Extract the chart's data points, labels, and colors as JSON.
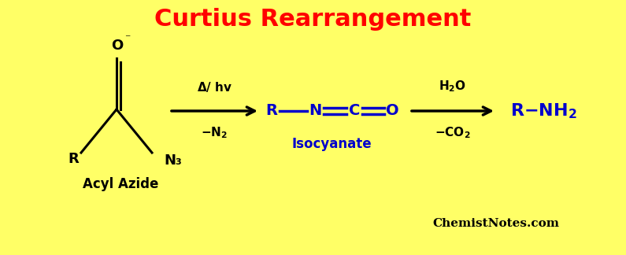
{
  "title": "Curtius Rearrangement",
  "title_color": "red",
  "title_fontsize": 22,
  "background_color": "#FFFF66",
  "acyl_azide_label": "Acyl Azide",
  "isocyanate_label": "Isocyanate",
  "watermark": "ChemistNotes.com",
  "blue_color": "#0000CC",
  "black_color": "#000000",
  "figsize": [
    7.95,
    3.24
  ],
  "dpi": 100
}
